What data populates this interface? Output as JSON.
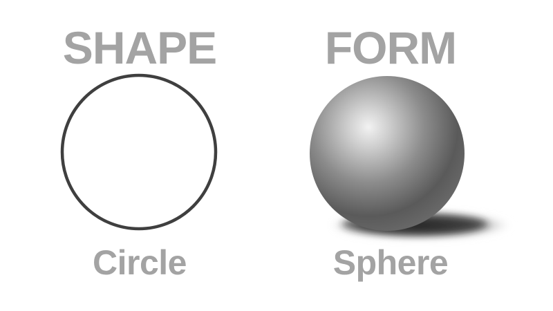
{
  "left_panel": {
    "heading": "SHAPE",
    "caption": "Circle"
  },
  "right_panel": {
    "heading": "FORM",
    "caption": "Sphere"
  },
  "colors": {
    "text": "#a3a3a3",
    "circle_stroke": "#3f3f3f",
    "background": "#ffffff"
  }
}
